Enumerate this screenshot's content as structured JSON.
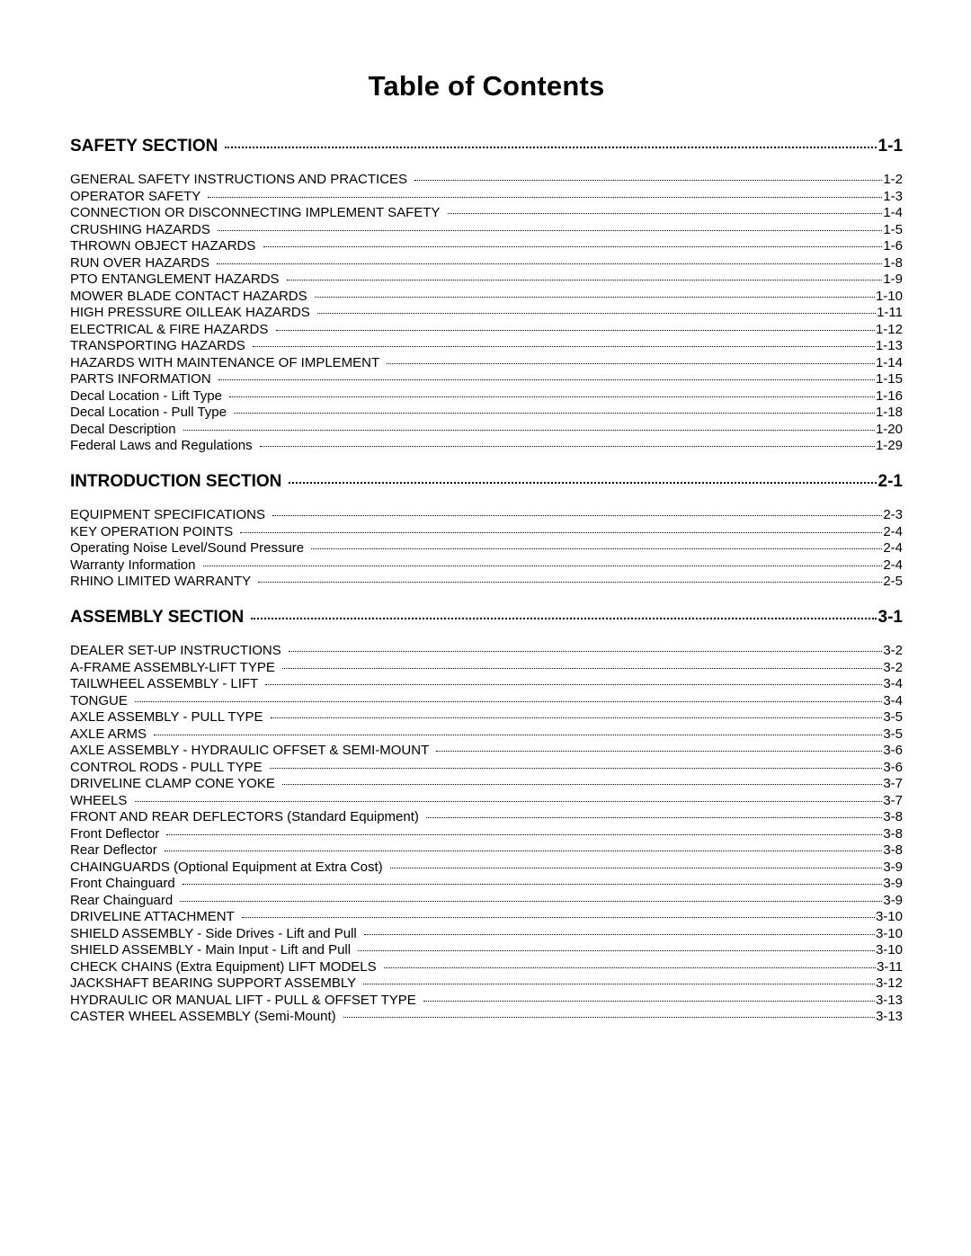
{
  "title": "Table of Contents",
  "sections": [
    {
      "heading": "SAFETY SECTION",
      "page": "1-1",
      "entries": [
        {
          "label": "GENERAL SAFETY INSTRUCTIONS AND PRACTICES",
          "page": "1-2"
        },
        {
          "label": "OPERATOR SAFETY",
          "page": "1-3"
        },
        {
          "label": "CONNECTION OR DISCONNECTING IMPLEMENT SAFETY",
          "page": "1-4"
        },
        {
          "label": "CRUSHING HAZARDS",
          "page": "1-5"
        },
        {
          "label": "THROWN OBJECT HAZARDS",
          "page": "1-6"
        },
        {
          "label": "RUN OVER HAZARDS",
          "page": "1-8"
        },
        {
          "label": "PTO ENTANGLEMENT HAZARDS",
          "page": "1-9"
        },
        {
          "label": "MOWER BLADE CONTACT HAZARDS",
          "page": "1-10"
        },
        {
          "label": "HIGH PRESSURE OILLEAK HAZARDS",
          "page": "1-11"
        },
        {
          "label": "ELECTRICAL & FIRE HAZARDS",
          "page": "1-12"
        },
        {
          "label": "TRANSPORTING HAZARDS",
          "page": "1-13"
        },
        {
          "label": "HAZARDS WITH MAINTENANCE OF IMPLEMENT",
          "page": "1-14"
        },
        {
          "label": "PARTS INFORMATION",
          "page": "1-15"
        },
        {
          "label": "Decal Location - Lift Type",
          "page": "1-16"
        },
        {
          "label": "Decal Location - Pull Type",
          "page": "1-18"
        },
        {
          "label": "Decal Description",
          "page": "1-20"
        },
        {
          "label": "Federal Laws and Regulations",
          "page": "1-29"
        }
      ]
    },
    {
      "heading": "INTRODUCTION SECTION",
      "page": "2-1",
      "entries": [
        {
          "label": "EQUIPMENT SPECIFICATIONS",
          "page": "2-3"
        },
        {
          "label": "KEY OPERATION POINTS",
          "page": "2-4"
        },
        {
          "label": "Operating Noise Level/Sound Pressure",
          "page": "2-4"
        },
        {
          "label": "Warranty Information",
          "page": "2-4"
        },
        {
          "label": "RHINO LIMITED WARRANTY",
          "page": "2-5"
        }
      ]
    },
    {
      "heading": "ASSEMBLY SECTION",
      "page": "3-1",
      "entries": [
        {
          "label": "DEALER SET-UP INSTRUCTIONS",
          "page": "3-2"
        },
        {
          "label": "A-FRAME ASSEMBLY-LIFT TYPE",
          "page": "3-2"
        },
        {
          "label": "TAILWHEEL ASSEMBLY - LIFT",
          "page": "3-4"
        },
        {
          "label": "TONGUE",
          "page": "3-4"
        },
        {
          "label": "AXLE ASSEMBLY - PULL TYPE",
          "page": "3-5"
        },
        {
          "label": "AXLE ARMS",
          "page": "3-5"
        },
        {
          "label": "AXLE ASSEMBLY - HYDRAULIC OFFSET & SEMI-MOUNT",
          "page": "3-6"
        },
        {
          "label": "CONTROL RODS - PULL TYPE",
          "page": "3-6"
        },
        {
          "label": "DRIVELINE CLAMP CONE YOKE",
          "page": "3-7"
        },
        {
          "label": "WHEELS",
          "page": "3-7"
        },
        {
          "label": "FRONT AND REAR DEFLECTORS (Standard Equipment)",
          "page": "3-8"
        },
        {
          "label": "Front Deflector",
          "page": "3-8"
        },
        {
          "label": "Rear Deflector",
          "page": "3-8"
        },
        {
          "label": "CHAINGUARDS (Optional Equipment at Extra Cost)",
          "page": "3-9"
        },
        {
          "label": "Front Chainguard",
          "page": "3-9"
        },
        {
          "label": "Rear Chainguard",
          "page": "3-9"
        },
        {
          "label": "DRIVELINE ATTACHMENT",
          "page": "3-10"
        },
        {
          "label": "SHIELD ASSEMBLY - Side Drives - Lift and Pull",
          "page": "3-10"
        },
        {
          "label": "SHIELD ASSEMBLY - Main Input - Lift and Pull",
          "page": "3-10"
        },
        {
          "label": "CHECK CHAINS (Extra Equipment) LIFT MODELS",
          "page": "3-11"
        },
        {
          "label": "JACKSHAFT BEARING SUPPORT ASSEMBLY",
          "page": "3-12"
        },
        {
          "label": "HYDRAULIC OR MANUAL LIFT - PULL & OFFSET TYPE",
          "page": "3-13"
        },
        {
          "label": "CASTER WHEEL ASSEMBLY (Semi-Mount)",
          "page": "3-13"
        }
      ]
    }
  ]
}
